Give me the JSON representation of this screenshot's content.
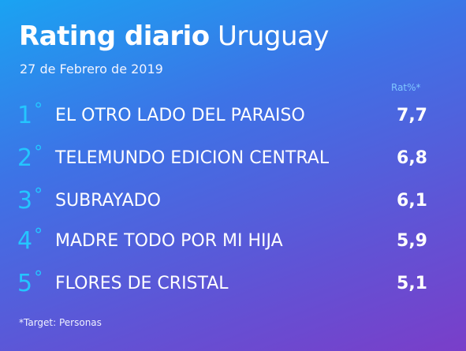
{
  "header": {
    "title_bold": "Rating diario",
    "title_light": "Uruguay",
    "date": "27 de Febrero de 2019",
    "column_label": "Rat%*"
  },
  "ranking": [
    {
      "rank": "1",
      "degree": "°",
      "program": "EL OTRO LADO DEL PARAISO",
      "rating": "7,7"
    },
    {
      "rank": "2",
      "degree": "°",
      "program": "TELEMUNDO EDICION CENTRAL",
      "rating": "6,8"
    },
    {
      "rank": "3",
      "degree": "°",
      "program": "SUBRAYADO",
      "rating": "6,1"
    },
    {
      "rank": "4",
      "degree": "°",
      "program": "MADRE TODO POR MI HIJA",
      "rating": "5,9"
    },
    {
      "rank": "5",
      "degree": "°",
      "program": "FLORES DE CRISTAL",
      "rating": "5,1"
    }
  ],
  "footnote": "*Target: Personas",
  "colors": {
    "rank_accent": "#24c6ff",
    "gradient_start": "#1aa3f2",
    "gradient_end": "#7a3ec9"
  }
}
